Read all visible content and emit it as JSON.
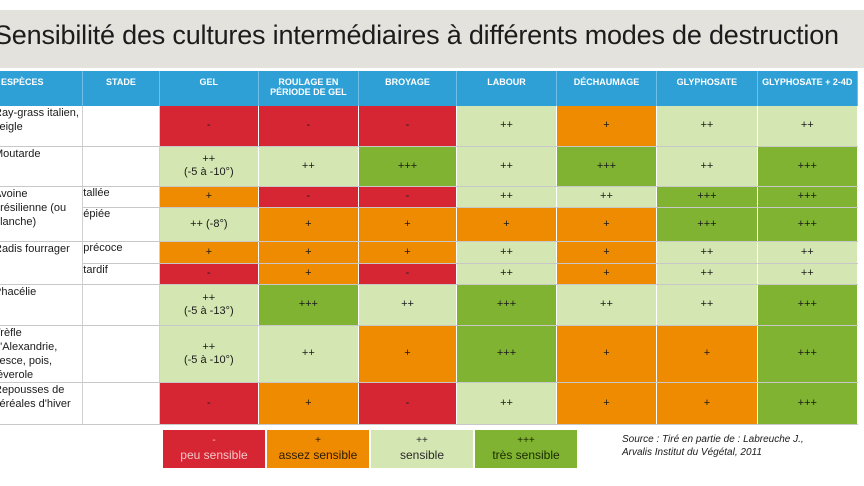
{
  "title": "Sensibilité des cultures intermédiaires à différents modes de destruction",
  "headers": {
    "especes": "ESPÈCES",
    "stade": "STADE",
    "gel": "GEL",
    "roulage": "ROULAGE EN PÉRIODE DE GEL",
    "broyage": "BROYAGE",
    "labour": "LABOUR",
    "dechaumage": "DÉCHAUMAGE",
    "glyphosate": "GLYPHOSATE",
    "glyphosate_24d": "GLYPHOSATE + 2-4D"
  },
  "rows": [
    {
      "name": "Ray-grass italien, seigle",
      "stage": "",
      "cells": [
        {
          "t": "-",
          "s": 1
        },
        {
          "t": "-",
          "s": 1
        },
        {
          "t": "-",
          "s": 1
        },
        {
          "t": "++",
          "s": 3
        },
        {
          "t": "+",
          "s": 2
        },
        {
          "t": "++",
          "s": 3
        },
        {
          "t": "++",
          "s": 3
        }
      ]
    },
    {
      "name": "Moutarde",
      "stage": "",
      "cells": [
        {
          "t": "++ (-5 à -10°)",
          "s": 3
        },
        {
          "t": "++",
          "s": 3
        },
        {
          "t": "+++",
          "s": 4
        },
        {
          "t": "++",
          "s": 3
        },
        {
          "t": "+++",
          "s": 4
        },
        {
          "t": "++",
          "s": 3
        },
        {
          "t": "+++",
          "s": 4
        }
      ]
    },
    {
      "name": "Avoine brésilienne (ou blanche)",
      "stage": "tallée",
      "cells": [
        {
          "t": "+",
          "s": 2
        },
        {
          "t": "-",
          "s": 1
        },
        {
          "t": "-",
          "s": 1
        },
        {
          "t": "++",
          "s": 3
        },
        {
          "t": "++",
          "s": 3
        },
        {
          "t": "+++",
          "s": 4
        },
        {
          "t": "+++",
          "s": 4
        }
      ]
    },
    {
      "name": "",
      "stage": "épiée",
      "cells": [
        {
          "t": "++ (-8°)",
          "s": 3
        },
        {
          "t": "+",
          "s": 2
        },
        {
          "t": "+",
          "s": 2
        },
        {
          "t": "+",
          "s": 2
        },
        {
          "t": "+",
          "s": 2
        },
        {
          "t": "+++",
          "s": 4
        },
        {
          "t": "+++",
          "s": 4
        }
      ]
    },
    {
      "name": "Radis fourrager",
      "stage": "précoce",
      "cells": [
        {
          "t": "+",
          "s": 2
        },
        {
          "t": "+",
          "s": 2
        },
        {
          "t": "+",
          "s": 2
        },
        {
          "t": "++",
          "s": 3
        },
        {
          "t": "+",
          "s": 2
        },
        {
          "t": "++",
          "s": 3
        },
        {
          "t": "++",
          "s": 3
        }
      ]
    },
    {
      "name": "",
      "stage": "tardif",
      "cells": [
        {
          "t": "-",
          "s": 1
        },
        {
          "t": "+",
          "s": 2
        },
        {
          "t": "-",
          "s": 1
        },
        {
          "t": "++",
          "s": 3
        },
        {
          "t": "+",
          "s": 2
        },
        {
          "t": "++",
          "s": 3
        },
        {
          "t": "++",
          "s": 3
        }
      ]
    },
    {
      "name": "Phacélie",
      "stage": "",
      "cells": [
        {
          "t": "++ (-5 à -13°)",
          "s": 3
        },
        {
          "t": "+++",
          "s": 4
        },
        {
          "t": "++",
          "s": 3
        },
        {
          "t": "+++",
          "s": 4
        },
        {
          "t": "++",
          "s": 3
        },
        {
          "t": "++",
          "s": 3
        },
        {
          "t": "+++",
          "s": 4
        }
      ]
    },
    {
      "name": "Trèfle d'Alexandrie, vesce, pois, féverole",
      "stage": "",
      "cells": [
        {
          "t": "++ (-5 à -10°)",
          "s": 3
        },
        {
          "t": "++",
          "s": 3
        },
        {
          "t": "+",
          "s": 2
        },
        {
          "t": "+++",
          "s": 4
        },
        {
          "t": "+",
          "s": 2
        },
        {
          "t": "+",
          "s": 2
        },
        {
          "t": "+++",
          "s": 4
        }
      ]
    },
    {
      "name": "Repousses de céréales d'hiver",
      "stage": "",
      "cells": [
        {
          "t": "-",
          "s": 1
        },
        {
          "t": "+",
          "s": 2
        },
        {
          "t": "-",
          "s": 1
        },
        {
          "t": "++",
          "s": 3
        },
        {
          "t": "+",
          "s": 2
        },
        {
          "t": "+",
          "s": 2
        },
        {
          "t": "+++",
          "s": 4
        }
      ]
    }
  ],
  "legend": [
    {
      "symbol": "-",
      "label": "peu sensible",
      "s": 1
    },
    {
      "symbol": "+",
      "label": "assez sensible",
      "s": 2
    },
    {
      "symbol": "++",
      "label": "sensible",
      "s": 3
    },
    {
      "symbol": "+++",
      "label": "très sensible",
      "s": 4
    }
  ],
  "source": {
    "line1": "Source : Tiré en partie de : Labreuche J.,",
    "line2": "Arvalis Institut du Végétal, 2011"
  }
}
